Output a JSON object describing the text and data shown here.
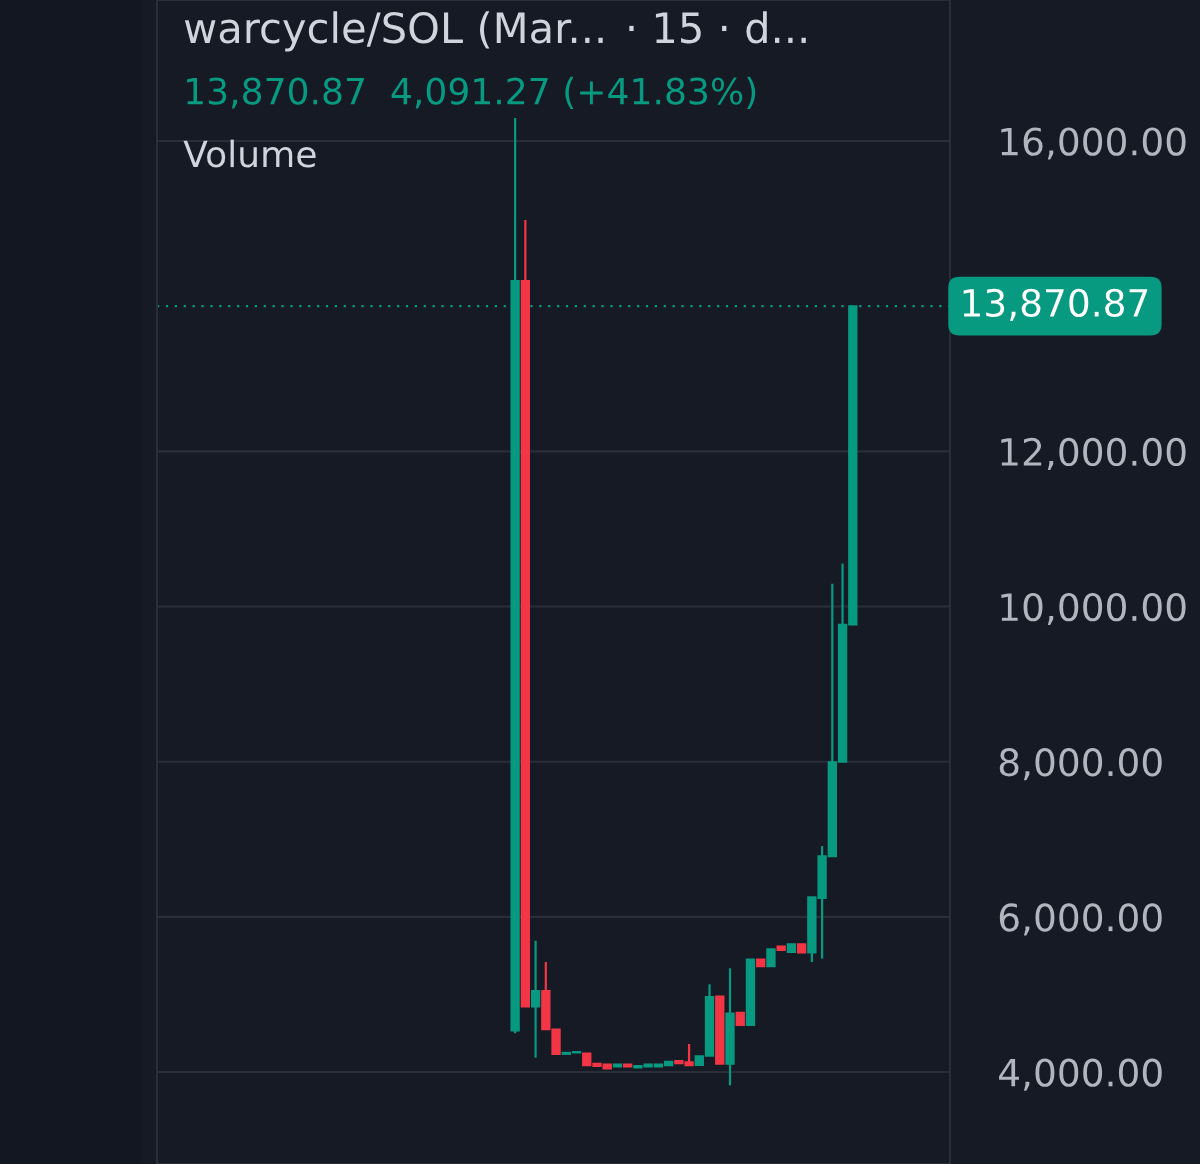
{
  "chart_data": {
    "type": "candlestick",
    "title": "warcycle/SOL (Mar...",
    "subtitle": "· 15 · d...",
    "annotations": [
      "13,870.87  4,091.27 (+41.83%)",
      "Volume"
    ],
    "categories": [
      null,
      null,
      null,
      null,
      null,
      null,
      null,
      null,
      null,
      null,
      null,
      null,
      null,
      null,
      null,
      null,
      null,
      null,
      null,
      null,
      null,
      null,
      null,
      null,
      null,
      null,
      null,
      null,
      null,
      null,
      null,
      null,
      null,
      null
    ],
    "ohlc": [
      [
        4533,
        16296,
        4500,
        14196
      ],
      [
        14196,
        14982,
        4842,
        4842
      ],
      [
        4842,
        5693,
        4185,
        5048
      ],
      [
        5048,
        5418,
        4551,
        4551
      ],
      [
        4551,
        4551,
        4232,
        4232
      ],
      [
        4232,
        4250,
        4232,
        4250
      ],
      [
        4250,
        4260,
        4250,
        4260
      ],
      [
        4240,
        4240,
        4087,
        4087
      ],
      [
        4110,
        4110,
        4075,
        4075
      ],
      [
        4100,
        4100,
        4043,
        4043
      ],
      [
        4070,
        4100,
        4070,
        4100
      ],
      [
        4100,
        4100,
        4070,
        4070
      ],
      [
        4055,
        4080,
        4055,
        4080
      ],
      [
        4070,
        4100,
        4070,
        4100
      ],
      [
        4070,
        4100,
        4070,
        4100
      ],
      [
        4085,
        4135,
        4085,
        4135
      ],
      [
        4145,
        4145,
        4110,
        4110
      ],
      [
        4130,
        4361,
        4085,
        4085
      ],
      [
        4090,
        4207,
        4090,
        4207
      ],
      [
        4207,
        5131,
        4207,
        4971
      ],
      [
        4975,
        4975,
        4104,
        4104
      ],
      [
        4104,
        5337,
        3829,
        4757
      ],
      [
        4765,
        4765,
        4603,
        4603
      ],
      [
        4603,
        5453,
        4603,
        5453
      ],
      [
        5453,
        5453,
        5360,
        5360
      ],
      [
        5360,
        5586,
        5360,
        5586
      ],
      [
        5620,
        5620,
        5570,
        5570
      ],
      [
        5545,
        5650,
        5545,
        5650
      ],
      [
        5650,
        5650,
        5540,
        5540
      ],
      [
        5540,
        6256,
        5418,
        6256
      ],
      [
        6240,
        6913,
        5462,
        6784
      ],
      [
        6780,
        10295,
        6780,
        7996
      ],
      [
        7996,
        10554,
        7996,
        9767
      ],
      [
        9767,
        13870.87,
        9767,
        13870.87
      ]
    ],
    "colors": [
      "#089981",
      "#f23645",
      "#089981",
      "#f23645",
      "#f23645",
      "#089981",
      "#089981",
      "#f23645",
      "#f23645",
      "#f23645",
      "#089981",
      "#f23645",
      "#089981",
      "#089981",
      "#089981",
      "#089981",
      "#f23645",
      "#f23645",
      "#089981",
      "#089981",
      "#f23645",
      "#089981",
      "#f23645",
      "#089981",
      "#f23645",
      "#089981",
      "#f23645",
      "#089981",
      "#f23645",
      "#089981",
      "#089981",
      "#089981",
      "#089981",
      "#089981"
    ],
    "ylim": [
      2815,
      17817
    ],
    "yticks": [
      {
        "value": 4000,
        "label": "4,000.00"
      },
      {
        "value": 6000,
        "label": "6,000.00"
      },
      {
        "value": 8000,
        "label": "8,000.00"
      },
      {
        "value": 10000,
        "label": "10,000.00"
      },
      {
        "value": 12000,
        "label": "12,000.00"
      },
      {
        "value": 16000,
        "label": "16,000.00"
      }
    ],
    "tick_labels": "y",
    "grid": "y",
    "ref_lines": [
      {
        "axis": "y",
        "value": 13870.87,
        "label": "13,870.87",
        "color": "#089981",
        "line_style": "dotted"
      }
    ]
  }
}
